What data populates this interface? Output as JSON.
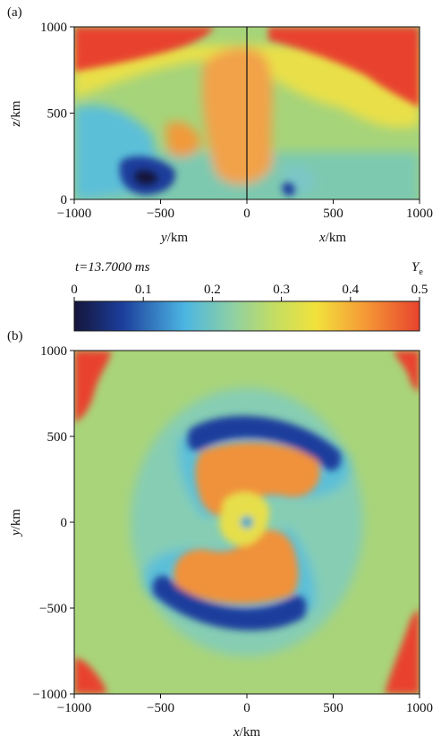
{
  "chart_data": [
    {
      "panel_label": "(a)",
      "type": "heatmap",
      "quantity": "Y_e",
      "time_label": "t=13.7000 ms",
      "left_half": {
        "xlabel_var": "y",
        "xlabel_unit": "/km",
        "xticks": [
          -1000,
          -500,
          0
        ],
        "xlim": [
          -1000,
          0
        ]
      },
      "right_half": {
        "xlabel_var": "x",
        "xlabel_unit": "/km",
        "xticks": [
          500,
          1000
        ],
        "xlim": [
          0,
          1000
        ]
      },
      "ylabel_var": "z",
      "ylabel_unit": "/km",
      "yticks": [
        0,
        500,
        1000
      ],
      "ylim": [
        0,
        1000
      ],
      "features": [
        {
          "name": "upper-corners",
          "approx_Ye": 0.47
        },
        {
          "name": "central-plume",
          "approx_Ye": 0.4
        },
        {
          "name": "low-Ye-pocket-left",
          "approx_Ye": 0.09
        },
        {
          "name": "background-lower",
          "approx_Ye": 0.27
        }
      ]
    },
    {
      "panel_label": "(b)",
      "type": "heatmap",
      "quantity": "Y_e",
      "xlabel_var": "x",
      "xlabel_unit": "/km",
      "ylabel_var": "y",
      "ylabel_unit": "/km",
      "xticks": [
        -1000,
        -500,
        0,
        500,
        1000
      ],
      "yticks": [
        -1000,
        -500,
        0,
        500,
        1000
      ],
      "xlim": [
        -1000,
        1000
      ],
      "ylim": [
        -1000,
        1000
      ],
      "features": [
        {
          "name": "two-armed-spiral",
          "approx_Ye": 0.4
        },
        {
          "name": "spiral-outer-edge",
          "approx_Ye": 0.09
        },
        {
          "name": "corners",
          "approx_Ye": 0.47
        },
        {
          "name": "background",
          "approx_Ye": 0.27
        }
      ]
    }
  ],
  "colorbar": {
    "var": "Y",
    "sub": "e",
    "ticks": [
      0,
      0.1,
      0.2,
      0.3,
      0.4,
      0.5
    ],
    "tick_labels": [
      "0",
      "0.1",
      "0.2",
      "0.3",
      "0.4",
      "0.5"
    ],
    "range": [
      0,
      0.5
    ],
    "stops": [
      "#15153a",
      "#1c3e9c",
      "#4cb6e2",
      "#8fd0a2",
      "#c3dd62",
      "#f2e23c",
      "#f59a36",
      "#e8432d"
    ]
  }
}
